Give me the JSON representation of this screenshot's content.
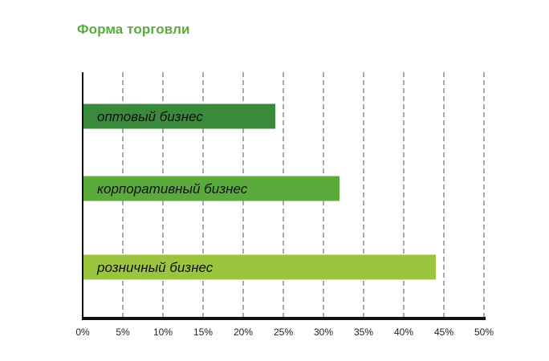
{
  "chart_data": {
    "type": "bar",
    "orientation": "horizontal",
    "title": "Форма торговли",
    "xlabel": "",
    "ylabel": "",
    "categories": [
      "оптовый бизнес",
      "корпоративный бизнес",
      "розничный бизнес"
    ],
    "values": [
      24,
      32,
      44
    ],
    "bar_colors": [
      "#3a8a3c",
      "#5aab3c",
      "#9bc53d"
    ],
    "xlim": [
      0,
      50
    ],
    "x_ticks": [
      0,
      5,
      10,
      15,
      20,
      25,
      30,
      35,
      40,
      45,
      50
    ],
    "x_tick_labels": [
      "0%",
      "5%",
      "10%",
      "15%",
      "20%",
      "25%",
      "30%",
      "35%",
      "40%",
      "45%",
      "50%"
    ],
    "grid": "vertical-dashed",
    "labels_inside_bars": true
  }
}
